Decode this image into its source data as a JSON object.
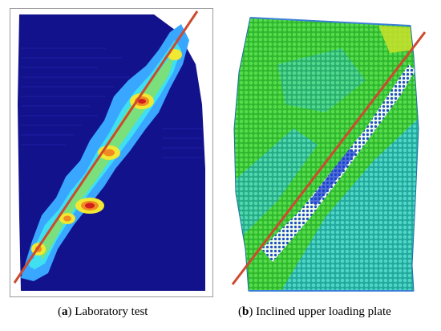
{
  "captions": {
    "a": {
      "letter": "a",
      "text": "Laboratory test"
    },
    "b": {
      "letter": "b",
      "text": "Inclined upper loading plate"
    }
  },
  "colors": {
    "background_a": "#12128c",
    "band_light_blue": "#39a6ff",
    "band_cyan": "#3fe0f0",
    "band_green": "#7be07b",
    "band_yellow": "#f0e832",
    "band_orange": "#f08a22",
    "band_red": "#d21e1e",
    "fit_line": "#cc4a2e",
    "particles_green": "#38c93a",
    "particles_teal": "#34c6b7",
    "particles_blue": "#1a3fd0",
    "frame": "#9a9a9a"
  }
}
